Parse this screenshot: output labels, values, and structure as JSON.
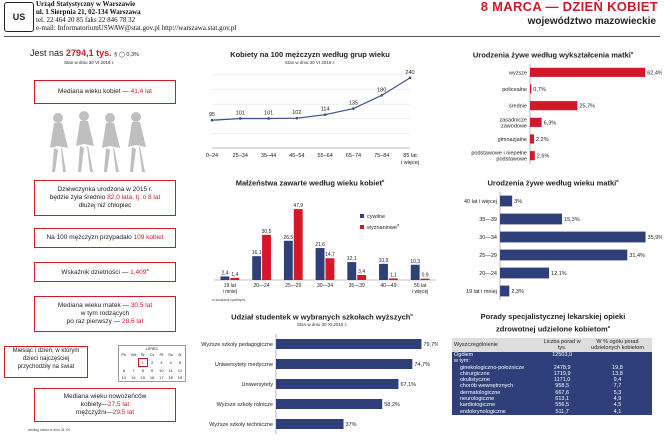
{
  "header": {
    "logo": "US",
    "org_name": "Urząd Statystyczny w Warszawie",
    "address": "ul. 1 Sierpnia 21, 02-134 Warszawa",
    "phone": "tel. 22 464 20 85  faks 22 846 78 32",
    "email": "e-mail: InformatoriumUSWAW@stat.gov.pl  http://warszawa.stat.gov.pl",
    "title": "8 MARCA — DZIEŃ KOBIET",
    "subtitle": "województwo mazowieckie"
  },
  "left": {
    "pop_prefix": "Jest nas",
    "pop_value": "2794,1 tys.",
    "pop_suffix": "§ ◯ 0,3%",
    "pop_date": "Stan w dniu 30 VI 2016 r.",
    "median_label": "Mediana wieku kobiet — ",
    "median_value": "41,4 lat",
    "girl_line1": "Dziewczynka urodzona w 2015 r.",
    "girl_line2_a": "będzie żyła średnio ",
    "girl_line2_b": "82,0 lata, tj. o 8 lat",
    "girl_line3": "dłużej niż chłopiec",
    "men_a": "Na 100 mężczyzn przypadało ",
    "men_b": "109 kobiet",
    "fert_a": "Wskaźnik dzietności — ",
    "fert_b": "1,409",
    "mother_line1_a": "Mediana wieku matek — ",
    "mother_line1_b": "30,5 lat",
    "mother_line2": "w tym rodzących",
    "mother_line3_a": "po raz pierwszy — ",
    "mother_line3_b": "28,6 lat",
    "day_line1": "Miesiąc i dzień, w którym",
    "day_line2": "dzieci najczęściej",
    "day_line3": "przychodziły na świat",
    "cal_month": "LIPIEC",
    "cal_head": [
      "Pn",
      "Wt",
      "Śr",
      "Cz",
      "Pt",
      "So",
      "N"
    ],
    "cal_rows": [
      [
        "",
        "",
        "1",
        "2",
        "3",
        "4",
        "5"
      ],
      [
        "6",
        "7",
        "8",
        "9",
        "10",
        "11",
        "12"
      ],
      [
        "13",
        "14",
        "15",
        "16",
        "17",
        "18",
        "19"
      ]
    ],
    "newly_line1": "Mediana wieku nowożeńców",
    "newly_line2_a": "kobiety—",
    "newly_line2_b": "27,5 lat",
    "newly_line3_a": "mężczyźni—",
    "newly_line3_b": "29,5 lat",
    "footnote": "według stanu w dniu 31 XII"
  },
  "chart1": {
    "title": "Kobiety na 100 mężczyzn według grup wieku",
    "subtitle": "Stan w dniu 30 VI 2016 r."
  },
  "chart2": {
    "title": "Małżeństwa zawarte według wieku kobiet",
    "legend_a": "cywilne",
    "legend_b": "wyznaniowe",
    "note": "w skutkami cywilnymi"
  },
  "chart3": {
    "title": "Udział studentek w wybranych szkołach wyższych",
    "subtitle": "Stan w dniu 30 XI 2015 r."
  },
  "chart4": {
    "title": "Urodzenia żywe według wykształcenia matki"
  },
  "chart5": {
    "title": "Urodzenia żywe według wieku matki"
  },
  "table": {
    "title_line1": "Porady specjalistycznej lekarskiej opieki",
    "title_line2": "zdrowotnej udzielone kobietom",
    "headers": [
      "Wyszczególnienie",
      "Liczba porad w tys.",
      "W % ogółu porad udzielonych kobietom"
    ],
    "rows": [
      [
        "Ogółem",
        "12503,0",
        ""
      ],
      [
        "w tym:",
        "",
        ""
      ],
      [
        "ginekologiczno-położnicze",
        "2478,9",
        "19,8"
      ],
      [
        "chirurgiczne",
        "1719,9",
        "13,8"
      ],
      [
        "okulistyczne",
        "1171,0",
        "9,4"
      ],
      [
        "chorób wewnętrznych",
        "958,5",
        "7,7"
      ],
      [
        "dermatologiczne",
        "667,6",
        "5,3"
      ],
      [
        "neurologiczne",
        "613,1",
        "4,9"
      ],
      [
        "kardiologiczne",
        "556,5",
        "4,5"
      ],
      [
        "endokrynologiczne",
        "511,7",
        "4,1"
      ]
    ]
  },
  "chart_data": [
    {
      "type": "line",
      "title": "Kobiety na 100 mężczyzn według grup wieku",
      "categories": [
        "0–24",
        "25–34",
        "35–44",
        "45–54",
        "55–64",
        "65–74",
        "75–84",
        "85 lat i więcej"
      ],
      "values": [
        95,
        101,
        101,
        102,
        114,
        135,
        180,
        240
      ],
      "ylim": [
        0,
        260
      ],
      "color": "#3a4f8a"
    },
    {
      "type": "bar",
      "title": "Małżeństwa zawarte według wieku kobiet",
      "categories": [
        "19 lat i mniej",
        "20—24",
        "25—29",
        "30—34",
        "35—39",
        "40—49",
        "50 lat i więcej"
      ],
      "series": [
        {
          "name": "cywilne",
          "values": [
            2.4,
            16.1,
            26.5,
            21.6,
            12.1,
            10.9,
            10.3
          ],
          "color": "#2e3f7a"
        },
        {
          "name": "wyznaniowe",
          "values": [
            1.4,
            30.5,
            47.9,
            14.7,
            3.4,
            1.1,
            0.9
          ],
          "color": "#d4182a"
        }
      ],
      "ylim": [
        0,
        50
      ]
    },
    {
      "type": "bar",
      "title": "Udział studentek w wybranych szkołach wyższych",
      "categories": [
        "Wyższe szkoły pedagogiczne",
        "Uniwersytety medyczne",
        "Uniwersytety",
        "Wyższe szkoły rolnicze",
        "Wyższe szkoły techniczne"
      ],
      "values": [
        79.7,
        74.7,
        67.1,
        58.2,
        37.0
      ],
      "xlim": [
        0,
        80
      ],
      "color": "#2e3f7a"
    },
    {
      "type": "bar",
      "title": "Urodzenia żywe według wykształcenia matki",
      "categories": [
        "wyższe",
        "policealne",
        "średnie",
        "zasadnicze zawodowe",
        "gimnazjalne",
        "podstawowe i niepełne podstawowe"
      ],
      "values": [
        62.4,
        0.7,
        25.7,
        6.3,
        2.2,
        2.6
      ],
      "xlim": [
        0,
        65
      ],
      "color": "#d4182a"
    },
    {
      "type": "bar",
      "title": "Urodzenia żywe według wieku matki",
      "categories": [
        "40 lat i więcej",
        "35—39",
        "30—34",
        "25—29",
        "20—24",
        "19 lat i mniej"
      ],
      "values": [
        3.0,
        15.3,
        35.9,
        31.4,
        12.1,
        2.3
      ],
      "xlim": [
        0,
        37
      ],
      "color": "#2e3f7a"
    }
  ]
}
